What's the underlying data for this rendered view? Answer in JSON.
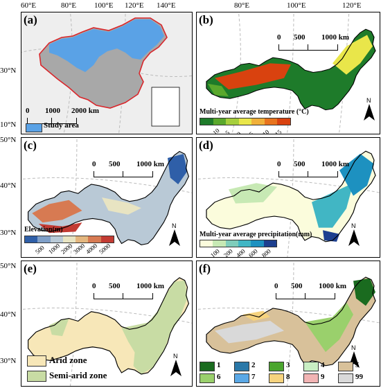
{
  "axes": {
    "top_lon": [
      "60°E",
      "80°E",
      "100°E",
      "120°E",
      "140°E"
    ],
    "right_lon": [
      "80°E",
      "100°E",
      "120°E"
    ],
    "lat_a": [
      "30°N",
      "10°N"
    ],
    "lat_cde": [
      "50°N",
      "40°N",
      "30°N"
    ]
  },
  "panels": {
    "a": {
      "label": "(a)",
      "scale": [
        "0",
        "1000",
        "2000 km"
      ],
      "legend": "Study area",
      "colors": {
        "study": "#5aa2e6",
        "china": "#a8a8a8",
        "border": "#d9262b"
      }
    },
    "b": {
      "label": "(b)",
      "scale": [
        "0",
        "500",
        "1000 km"
      ],
      "north": "N",
      "legend_title": "Multi-year average temperature (°C)",
      "ticks": [
        "-10",
        "-5",
        "0",
        "5",
        "10",
        "15"
      ],
      "colors": [
        "#1e7b2a",
        "#5aa82c",
        "#a6cf3d",
        "#e9e64a",
        "#f0b03a",
        "#e8741e",
        "#d9420f"
      ]
    },
    "c": {
      "label": "(c)",
      "scale": [
        "0",
        "500",
        "1000 km"
      ],
      "north": "N",
      "legend_title": "Elevation(m)",
      "ticks": [
        "500",
        "1000",
        "2000",
        "3000",
        "4000",
        "5000"
      ],
      "colors": [
        "#2f5fa8",
        "#7f9fc8",
        "#b9c9d6",
        "#e8e4c2",
        "#e3b67e",
        "#d77a52",
        "#c33b33"
      ]
    },
    "d": {
      "label": "(d)",
      "scale": [
        "0",
        "500",
        "1000 km"
      ],
      "north": "N",
      "legend_title": "Multi-year average precipitation(mm)",
      "ticks": [
        "100",
        "200",
        "400",
        "600",
        "800"
      ],
      "colors": [
        "#fbfcdc",
        "#c7e9b4",
        "#7fcdbb",
        "#41b6c4",
        "#1d91c0",
        "#1d3f8f"
      ]
    },
    "e": {
      "label": "(e)",
      "scale": [
        "0",
        "500",
        "1000 km"
      ],
      "north": "N",
      "legend": [
        "Arid zone",
        "Semi-arid zone"
      ],
      "colors": {
        "arid": "#f7e7b8",
        "semiarid": "#c8dca4"
      }
    },
    "f": {
      "label": "(f)",
      "scale": [
        "0",
        "500",
        "1000 km"
      ],
      "north": "N",
      "classes": [
        "1",
        "2",
        "3",
        "4",
        "5",
        "6",
        "7",
        "8",
        "9",
        "99"
      ],
      "colors": [
        "#1a6b1f",
        "#2a78a8",
        "#4aa52e",
        "#c9efc4",
        "#d8c19a",
        "#9ad06c",
        "#5aa8e6",
        "#f6d37e",
        "#f2b4b4",
        "#d9d9d9"
      ]
    }
  }
}
